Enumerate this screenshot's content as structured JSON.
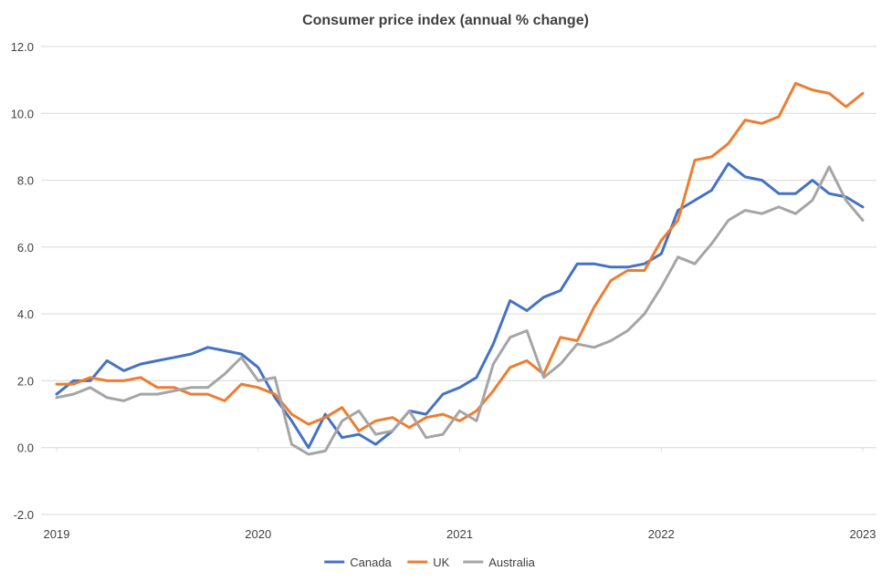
{
  "chart_data": {
    "type": "line",
    "title": "Consumer price index (annual % change)",
    "xlabel": "",
    "ylabel": "",
    "ylim": [
      -2.0,
      12.0
    ],
    "yticks": [
      -2.0,
      0.0,
      2.0,
      4.0,
      6.0,
      8.0,
      10.0,
      12.0
    ],
    "ytick_labels": [
      "-2.0",
      "0.0",
      "2.0",
      "4.0",
      "6.0",
      "8.0",
      "10.0",
      "12.0"
    ],
    "xlim": [
      "2019-01",
      "2023-01"
    ],
    "xticks": [
      "2019",
      "2020",
      "2021",
      "2022",
      "2023"
    ],
    "grid": "horizontal",
    "legend_position": "bottom",
    "x": [
      "2019-01",
      "2019-02",
      "2019-03",
      "2019-04",
      "2019-05",
      "2019-06",
      "2019-07",
      "2019-08",
      "2019-09",
      "2019-10",
      "2019-11",
      "2019-12",
      "2020-01",
      "2020-02",
      "2020-03",
      "2020-04",
      "2020-05",
      "2020-06",
      "2020-07",
      "2020-08",
      "2020-09",
      "2020-10",
      "2020-11",
      "2020-12",
      "2021-01",
      "2021-02",
      "2021-03",
      "2021-04",
      "2021-05",
      "2021-06",
      "2021-07",
      "2021-08",
      "2021-09",
      "2021-10",
      "2021-11",
      "2021-12",
      "2022-01",
      "2022-02",
      "2022-03",
      "2022-04",
      "2022-05",
      "2022-06",
      "2022-07",
      "2022-08",
      "2022-09",
      "2022-10",
      "2022-11",
      "2022-12",
      "2023-01"
    ],
    "series": [
      {
        "name": "Canada",
        "color": "#4472c4",
        "values": [
          1.6,
          2.0,
          2.0,
          2.6,
          2.3,
          2.5,
          2.6,
          2.7,
          2.8,
          3.0,
          2.9,
          2.8,
          2.4,
          1.5,
          0.8,
          0.0,
          1.0,
          0.3,
          0.4,
          0.1,
          0.5,
          1.1,
          1.0,
          1.6,
          1.8,
          2.1,
          3.1,
          4.4,
          4.1,
          4.5,
          4.7,
          5.5,
          5.5,
          5.4,
          5.4,
          5.5,
          5.8,
          7.1,
          7.4,
          7.7,
          8.5,
          8.1,
          8.0,
          7.6,
          7.6,
          8.0,
          7.6,
          7.5,
          7.2
        ]
      },
      {
        "name": "UK",
        "color": "#ed7d31",
        "values": [
          1.9,
          1.9,
          2.1,
          2.0,
          2.0,
          2.1,
          1.8,
          1.8,
          1.6,
          1.6,
          1.4,
          1.9,
          1.8,
          1.6,
          1.0,
          0.7,
          0.9,
          1.2,
          0.5,
          0.8,
          0.9,
          0.6,
          0.9,
          1.0,
          0.8,
          1.1,
          1.7,
          2.4,
          2.6,
          2.2,
          3.3,
          3.2,
          4.2,
          5.0,
          5.3,
          5.3,
          6.2,
          6.8,
          8.6,
          8.7,
          9.1,
          9.8,
          9.7,
          9.9,
          10.9,
          10.7,
          10.6,
          10.2,
          10.6
        ]
      },
      {
        "name": "Australia",
        "color": "#a5a5a5",
        "values": [
          1.5,
          1.6,
          1.8,
          1.5,
          1.4,
          1.6,
          1.6,
          1.7,
          1.8,
          1.8,
          2.2,
          2.7,
          2.0,
          2.1,
          0.1,
          -0.2,
          -0.1,
          0.8,
          1.1,
          0.4,
          0.5,
          1.1,
          0.3,
          0.4,
          1.1,
          0.8,
          2.5,
          3.3,
          3.5,
          2.1,
          2.5,
          3.1,
          3.0,
          3.2,
          3.5,
          4.0,
          4.8,
          5.7,
          5.5,
          6.1,
          6.8,
          7.1,
          7.0,
          7.2,
          7.0,
          7.4,
          8.4,
          7.4,
          6.8
        ]
      }
    ]
  },
  "colors": {
    "gridline": "#d9d9d9",
    "axis_text": "#404040"
  }
}
